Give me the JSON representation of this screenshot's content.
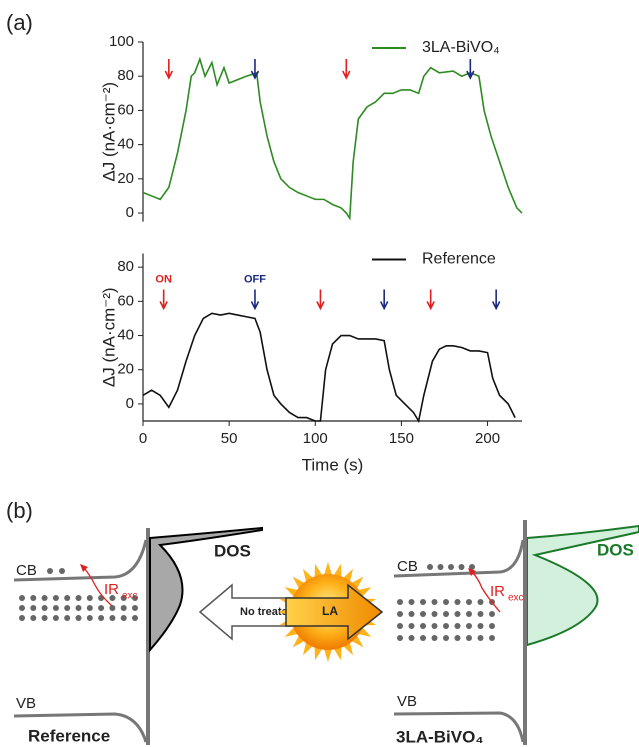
{
  "panels": [
    "(a)",
    "(b)"
  ],
  "chart_data": [
    {
      "type": "line",
      "ylabel": "ΔJ (nA·cm⁻²)",
      "xlim": [
        0,
        220
      ],
      "ylim": [
        -5,
        100
      ],
      "yticks": [
        0,
        20,
        40,
        60,
        80,
        100
      ],
      "legend": "upper right",
      "on_color": "#e02020",
      "off_color": "#1a2a80",
      "on_x": [
        15,
        118
      ],
      "off_x": [
        65,
        190
      ],
      "x": [
        0,
        5,
        10,
        15,
        20,
        25,
        28,
        30,
        33,
        36,
        40,
        43,
        47,
        50,
        55,
        60,
        66,
        68,
        72,
        76,
        80,
        85,
        90,
        95,
        100,
        105,
        110,
        115,
        118,
        120,
        122,
        125,
        130,
        135,
        140,
        145,
        150,
        155,
        160,
        163,
        167,
        172,
        180,
        185,
        190,
        195,
        198,
        202,
        207,
        212,
        217,
        220
      ],
      "series": [
        {
          "name": "3LA-BiVO₄",
          "color": "#2e8b22",
          "values": [
            12,
            10,
            8,
            15,
            35,
            60,
            80,
            82,
            90,
            80,
            88,
            75,
            85,
            76,
            78,
            80,
            82,
            65,
            45,
            30,
            20,
            15,
            12,
            10,
            8,
            8,
            5,
            3,
            0,
            -3,
            30,
            55,
            62,
            65,
            70,
            70,
            72,
            72,
            70,
            80,
            85,
            82,
            83,
            80,
            82,
            80,
            60,
            45,
            30,
            15,
            3,
            0
          ]
        }
      ]
    },
    {
      "type": "line",
      "ylabel": "ΔJ (nA·cm⁻²)",
      "xlabel": "Time (s)",
      "xlim": [
        0,
        220
      ],
      "xticks": [
        0,
        50,
        100,
        150,
        200
      ],
      "ylim": [
        -10,
        88
      ],
      "yticks": [
        0,
        20,
        40,
        60,
        80
      ],
      "legend": "upper right",
      "on_color": "#e02020",
      "off_color": "#1a2a80",
      "on_x": [
        12,
        103,
        167
      ],
      "off_x": [
        65,
        140,
        205
      ],
      "annotations": [
        {
          "text": "ON",
          "x": 12,
          "color": "#e02020"
        },
        {
          "text": "OFF",
          "x": 65,
          "color": "#1a2a80"
        }
      ],
      "x": [
        0,
        5,
        10,
        15,
        20,
        25,
        30,
        35,
        40,
        45,
        50,
        55,
        60,
        65,
        68,
        72,
        76,
        80,
        85,
        90,
        95,
        100,
        103,
        106,
        110,
        115,
        120,
        125,
        130,
        135,
        140,
        143,
        147,
        152,
        157,
        160,
        163,
        168,
        172,
        176,
        180,
        185,
        190,
        195,
        200,
        203,
        207,
        212,
        216
      ],
      "series": [
        {
          "name": "Reference",
          "color": "#111111",
          "values": [
            5,
            8,
            5,
            -2,
            8,
            25,
            40,
            50,
            53,
            52,
            53,
            52,
            51,
            50,
            42,
            20,
            5,
            0,
            -5,
            -8,
            -8,
            -10,
            -10,
            20,
            35,
            40,
            40,
            38,
            38,
            38,
            37,
            20,
            5,
            0,
            -5,
            -10,
            5,
            25,
            32,
            34,
            34,
            33,
            31,
            31,
            30,
            15,
            5,
            0,
            -8
          ]
        }
      ]
    }
  ],
  "diagram": {
    "left": {
      "cb": "CB",
      "vb": "VB",
      "ir": "IR",
      "ir_sub": "exc",
      "dos": "DOS",
      "caption": "Reference"
    },
    "middle": {
      "left_arrow": "No treated",
      "right_arrow": "LA"
    },
    "right": {
      "cb": "CB",
      "vb": "VB",
      "ir": "IR",
      "ir_sub": "exc",
      "dos": "DOS",
      "caption": "3LA-BiVO₄"
    }
  }
}
